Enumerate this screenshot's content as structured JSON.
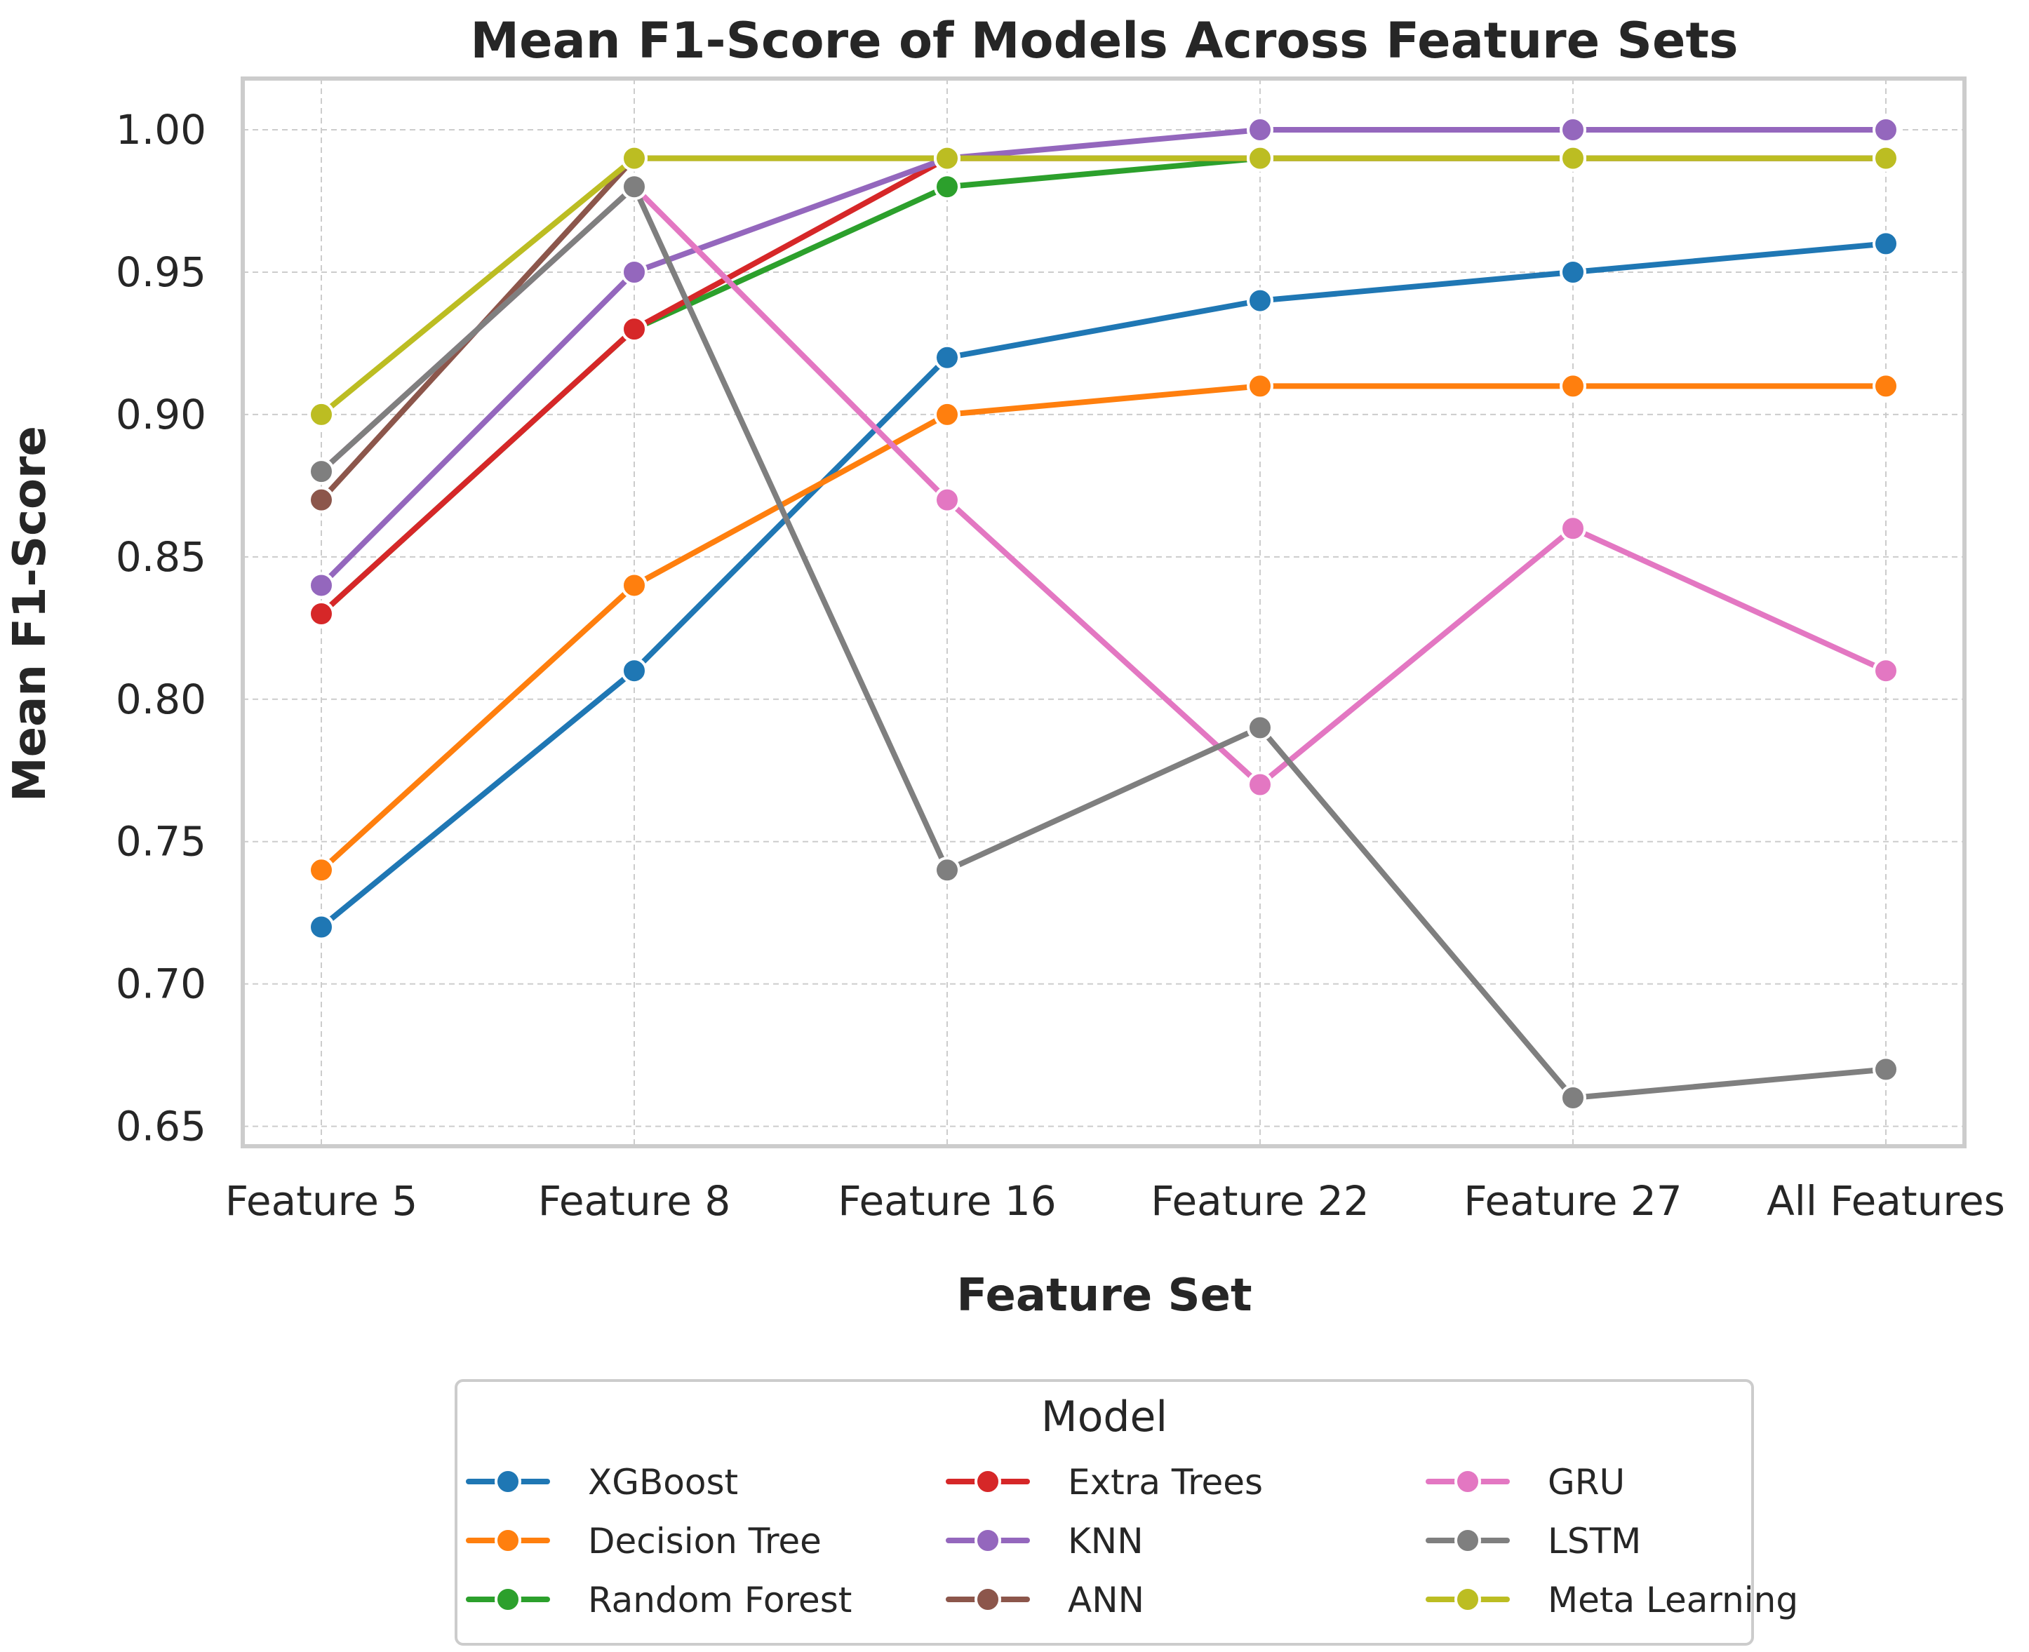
{
  "chart_data": {
    "type": "line",
    "title": "Mean F1-Score of Models Across Feature Sets",
    "xlabel": "Feature Set",
    "ylabel": "Mean F1-Score",
    "categories": [
      "Feature 5",
      "Feature 8",
      "Feature 16",
      "Feature 22",
      "Feature 27",
      "All Features"
    ],
    "ylim": [
      0.643,
      1.018
    ],
    "yticks": [
      0.65,
      0.7,
      0.75,
      0.8,
      0.85,
      0.9,
      0.95,
      1.0
    ],
    "ytick_labels": [
      "0.65",
      "0.70",
      "0.75",
      "0.80",
      "0.85",
      "0.90",
      "0.95",
      "1.00"
    ],
    "grid": true,
    "legend_title": "Model",
    "legend_position": "bottom-center",
    "series": [
      {
        "name": "XGBoost",
        "color": "#1f77b4",
        "values": [
          0.72,
          0.81,
          0.92,
          0.94,
          0.95,
          0.96
        ]
      },
      {
        "name": "Decision Tree",
        "color": "#ff7f0e",
        "values": [
          0.74,
          0.84,
          0.9,
          0.91,
          0.91,
          0.91
        ]
      },
      {
        "name": "Random Forest",
        "color": "#2ca02c",
        "values": [
          0.83,
          0.93,
          0.98,
          0.99,
          0.99,
          0.99
        ]
      },
      {
        "name": "Extra Trees",
        "color": "#d62728",
        "values": [
          0.83,
          0.93,
          0.99,
          0.99,
          0.99,
          0.99
        ]
      },
      {
        "name": "KNN",
        "color": "#9467bd",
        "values": [
          0.84,
          0.95,
          0.99,
          1.0,
          1.0,
          1.0
        ]
      },
      {
        "name": "ANN",
        "color": "#8c564b",
        "values": [
          0.87,
          0.99,
          0.99,
          0.99,
          0.99,
          0.99
        ]
      },
      {
        "name": "GRU",
        "color": "#e377c2",
        "values": [
          0.88,
          0.98,
          0.87,
          0.77,
          0.86,
          0.81
        ]
      },
      {
        "name": "LSTM",
        "color": "#7f7f7f",
        "values": [
          0.88,
          0.98,
          0.74,
          0.79,
          0.66,
          0.67
        ]
      },
      {
        "name": "Meta Learning",
        "color": "#bcbd22",
        "values": [
          0.9,
          0.99,
          0.99,
          0.99,
          0.99,
          0.99
        ]
      }
    ]
  }
}
